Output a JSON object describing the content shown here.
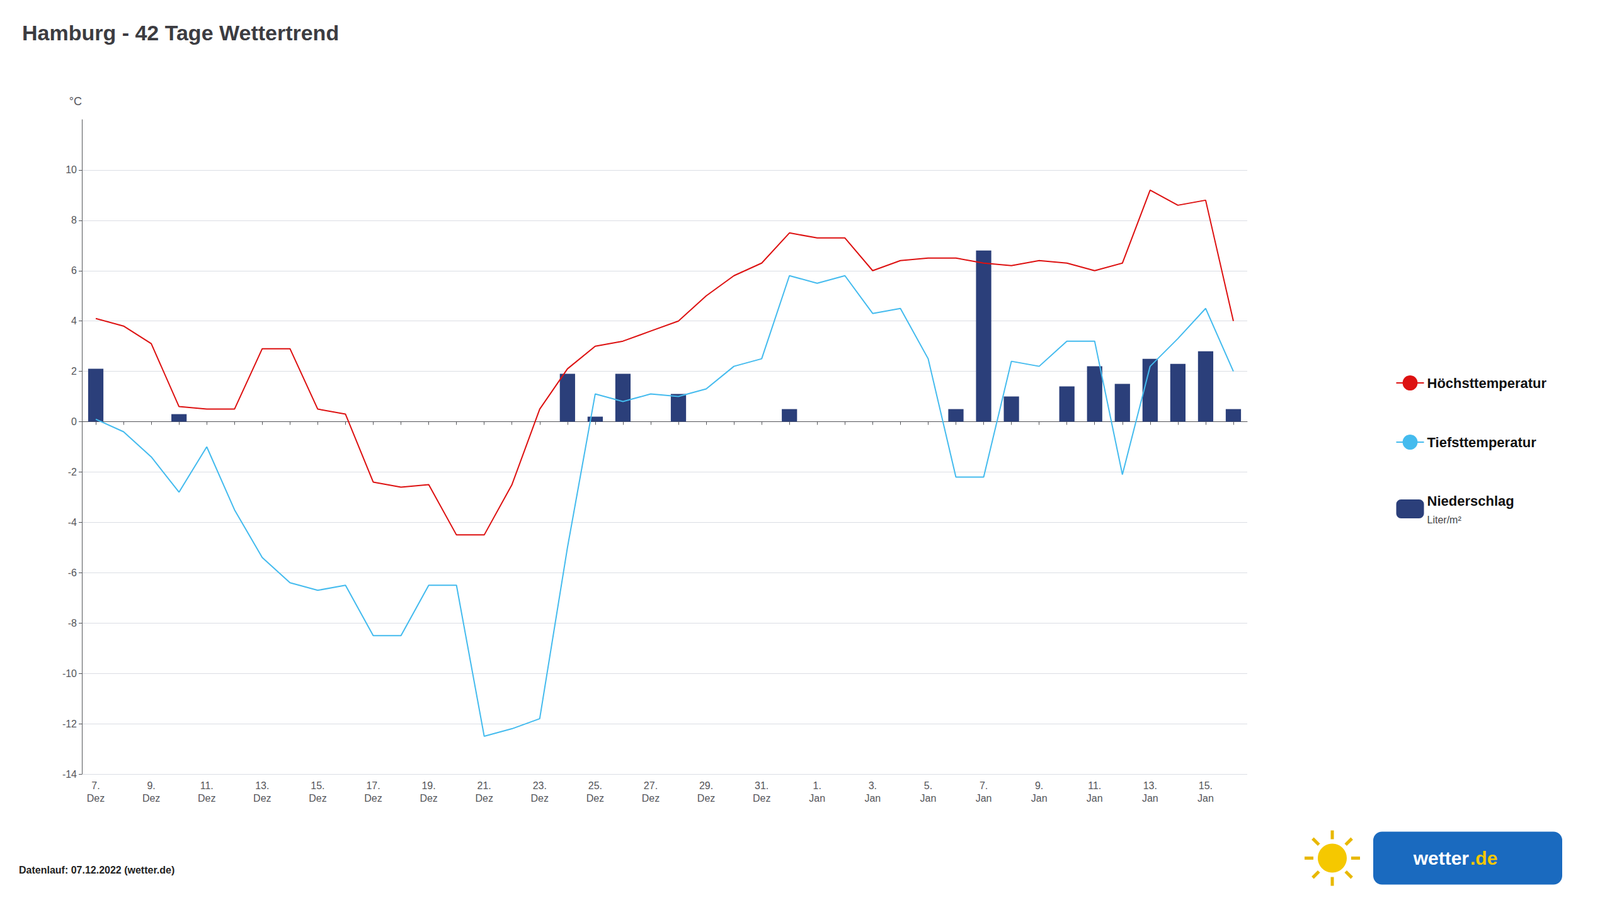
{
  "chart_data": {
    "type": "bar",
    "title": "Hamburg - 42 Tage Wettertrend",
    "ylabel": "°C",
    "categories": [
      "7.\nDez",
      null,
      "9.\nDez",
      null,
      "11.\nDez",
      null,
      "13.\nDez",
      null,
      "15.\nDez",
      null,
      "17.\nDez",
      null,
      "19.\nDez",
      null,
      "21.\nDez",
      null,
      "23.\nDez",
      null,
      "25.\nDez",
      null,
      "27.\nDez",
      null,
      "29.\nDez",
      null,
      "31.\nDez",
      null,
      "1.\nJan",
      null,
      "3.\nJan",
      null,
      "5.\nJan",
      null,
      "7.\nJan",
      null,
      "9.\nJan",
      null,
      "11.\nJan",
      null,
      "13.\nJan",
      null,
      "15.\nJan",
      null
    ],
    "series": [
      {
        "name": "Höchsttemperatur",
        "type": "line",
        "color": "#dd1111",
        "values": [
          4.1,
          3.8,
          3.1,
          0.6,
          0.5,
          0.5,
          2.9,
          2.9,
          0.5,
          0.3,
          -2.4,
          -2.6,
          -2.5,
          -4.5,
          -4.5,
          -2.5,
          0.5,
          2.1,
          3.0,
          3.2,
          3.6,
          4.0,
          5.0,
          5.8,
          6.3,
          7.5,
          7.3,
          7.3,
          6.0,
          6.4,
          6.5,
          6.5,
          6.3,
          6.2,
          6.4,
          6.3,
          6.0,
          6.3,
          9.2,
          8.6,
          8.8,
          4.0
        ]
      },
      {
        "name": "Tiefsttemperatur",
        "type": "line",
        "color": "#44bbee",
        "values": [
          0.1,
          -0.4,
          -1.4,
          -2.8,
          -1.0,
          -3.5,
          -5.4,
          -6.4,
          -6.7,
          -6.5,
          -8.5,
          -8.5,
          -6.5,
          -6.5,
          -12.5,
          -12.2,
          -11.8,
          -5.0,
          1.1,
          0.8,
          1.1,
          1.0,
          1.3,
          2.2,
          2.5,
          5.8,
          5.5,
          5.8,
          4.3,
          4.5,
          2.5,
          -2.2,
          -2.2,
          2.4,
          2.2,
          3.2,
          3.2,
          -2.1,
          2.2,
          3.3,
          4.5,
          2.0
        ]
      },
      {
        "name": "Niederschlag",
        "type": "bar",
        "color": "#2b3f7a",
        "sublabel": "Liter/m²",
        "values": [
          2.1,
          0.0,
          0.0,
          0.3,
          0.0,
          0.0,
          0.0,
          0.0,
          0.0,
          0.0,
          0.0,
          0.0,
          0.0,
          0.0,
          0.0,
          0.0,
          0.0,
          1.9,
          0.2,
          1.9,
          0.0,
          1.1,
          0.0,
          0.0,
          0.0,
          0.5,
          0.0,
          0.0,
          0.0,
          0.0,
          0.0,
          0.5,
          6.8,
          1.0,
          0.0,
          1.4,
          2.2,
          1.5,
          2.5,
          2.3,
          2.8,
          0.5
        ]
      }
    ],
    "ylim": [
      -14,
      12
    ],
    "yticks": [
      -14,
      -12,
      -10,
      -8,
      -6,
      -4,
      -2,
      0,
      2,
      4,
      6,
      8,
      10
    ],
    "grid": true,
    "legend": "right",
    "annotations": [
      {
        "text": "Datenlauf: 07.12.2022 (wetter.de)"
      },
      {
        "text": "wetter"
      },
      {
        "text": ".de"
      }
    ]
  }
}
